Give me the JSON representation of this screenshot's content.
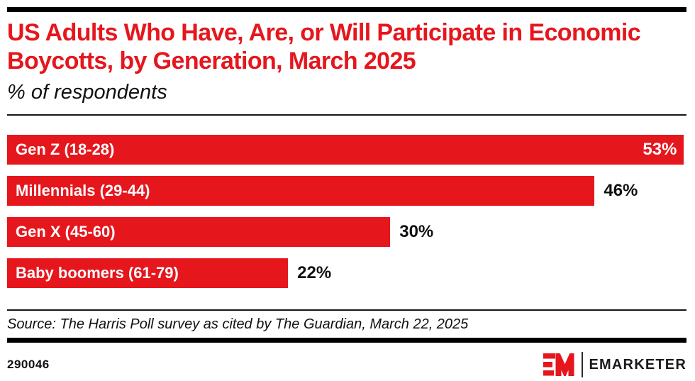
{
  "page": {
    "title": "US Adults Who Have, Are, or Will Participate in Economic Boycotts, by Generation, March 2025",
    "subtitle": "% of respondents",
    "source": "Source: The Harris Poll survey as cited by The Guardian, March 22, 2025",
    "chart_id": "290046"
  },
  "branding": {
    "logo_text": "EMARKETER",
    "logo_mark_name": "em-logo-mark"
  },
  "colors": {
    "accent_red": "#e6161d",
    "bar_red": "#e6161d",
    "text_black": "#111111",
    "rule_black": "#000000",
    "bar_label_white": "#ffffff"
  },
  "chart_data": {
    "type": "bar",
    "orientation": "horizontal",
    "title": "US Adults Who Have, Are, or Will Participate in Economic Boycotts, by Generation, March 2025",
    "subtitle": "% of respondents",
    "categories": [
      "Gen Z (18-28)",
      "Millennials (29-44)",
      "Gen X (45-60)",
      "Baby boomers (61-79)"
    ],
    "values": [
      53,
      46,
      30,
      22
    ],
    "value_labels": [
      "53%",
      "46%",
      "30%",
      "22%"
    ],
    "value_label_positions": [
      "inside",
      "outside",
      "outside",
      "outside"
    ],
    "unit": "%",
    "xlim": [
      0,
      53.2
    ],
    "grid": false,
    "legend": "none",
    "bar_color": "#e6161d",
    "source": "Source: The Harris Poll survey as cited by The Guardian, March 22, 2025",
    "footnote_id": "290046"
  }
}
